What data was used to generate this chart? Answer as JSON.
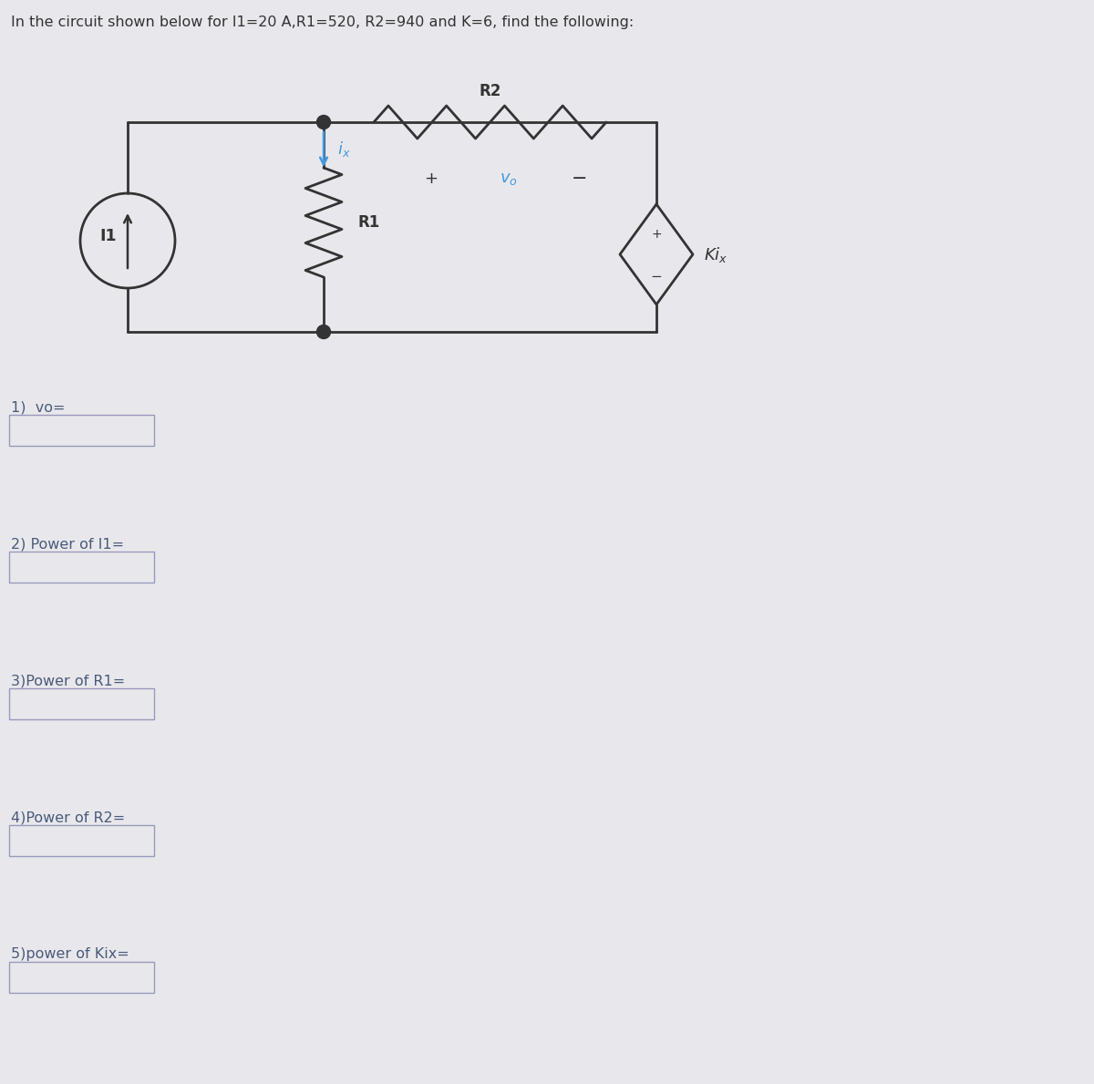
{
  "title": "In the circuit shown below for I1=20 A,R1=520, R2=940 and K=6, find the following:",
  "bg_color": "#e8e8ec",
  "circuit_color": "#333333",
  "blue_color": "#4499dd",
  "text_color": "#4a5a7a",
  "questions": [
    "1)  vo=",
    "2) Power of I1=",
    "3)Power of R1=",
    "4)Power of R2=",
    "5)power of Kix="
  ],
  "fig_width": 12.0,
  "fig_height": 11.89
}
